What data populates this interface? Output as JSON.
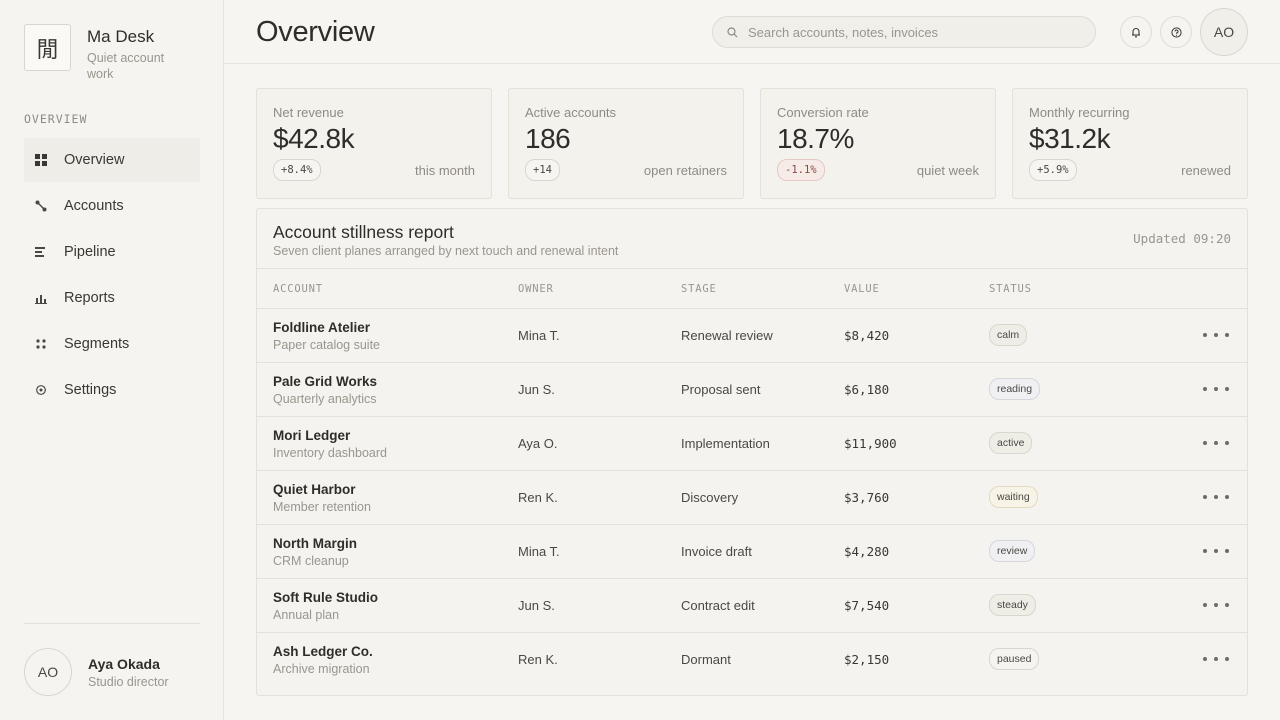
{
  "brand": {
    "name": "Ma Desk",
    "tagline": "Quiet account work",
    "logo_glyph": "閒"
  },
  "sidebar": {
    "section_label": "OVERVIEW",
    "items": [
      {
        "label": "Overview",
        "icon": "grid-icon",
        "active": true
      },
      {
        "label": "Accounts",
        "icon": "link-icon",
        "active": false
      },
      {
        "label": "Pipeline",
        "icon": "list-icon",
        "active": false
      },
      {
        "label": "Reports",
        "icon": "bar-chart-icon",
        "active": false
      },
      {
        "label": "Segments",
        "icon": "dots-grid-icon",
        "active": false
      },
      {
        "label": "Settings",
        "icon": "gear-icon",
        "active": false
      }
    ],
    "user": {
      "initials": "AO",
      "name": "Aya Okada",
      "role": "Studio director"
    }
  },
  "header": {
    "title": "Overview",
    "search_placeholder": "Search accounts, notes, invoices",
    "avatar_initials": "AO"
  },
  "metrics": [
    {
      "label": "Net revenue",
      "value": "$42.8k",
      "delta": "+8.4%",
      "delta_negative": false,
      "note": "this month"
    },
    {
      "label": "Active accounts",
      "value": "186",
      "delta": "+14",
      "delta_negative": false,
      "note": "open retainers"
    },
    {
      "label": "Conversion rate",
      "value": "18.7%",
      "delta": "-1.1%",
      "delta_negative": true,
      "note": "quiet week"
    },
    {
      "label": "Monthly recurring",
      "value": "$31.2k",
      "delta": "+5.9%",
      "delta_negative": false,
      "note": "renewed"
    }
  ],
  "report": {
    "title": "Account stillness report",
    "subtitle": "Seven client planes arranged by next touch and renewal intent",
    "updated": "Updated 09:20",
    "columns": [
      "ACCOUNT",
      "OWNER",
      "STAGE",
      "VALUE",
      "STATUS"
    ],
    "rows": [
      {
        "name": "Foldline Atelier",
        "sub": "Paper catalog suite",
        "owner": "Mina T.",
        "stage": "Renewal review",
        "value": "$8,420",
        "status": "calm"
      },
      {
        "name": "Pale Grid Works",
        "sub": "Quarterly analytics",
        "owner": "Jun S.",
        "stage": "Proposal sent",
        "value": "$6,180",
        "status": "reading"
      },
      {
        "name": "Mori Ledger",
        "sub": "Inventory dashboard",
        "owner": "Aya O.",
        "stage": "Implementation",
        "value": "$11,900",
        "status": "active"
      },
      {
        "name": "Quiet Harbor",
        "sub": "Member retention",
        "owner": "Ren K.",
        "stage": "Discovery",
        "value": "$3,760",
        "status": "waiting"
      },
      {
        "name": "North Margin",
        "sub": "CRM cleanup",
        "owner": "Mina T.",
        "stage": "Invoice draft",
        "value": "$4,280",
        "status": "review"
      },
      {
        "name": "Soft Rule Studio",
        "sub": "Annual plan",
        "owner": "Jun S.",
        "stage": "Contract edit",
        "value": "$7,540",
        "status": "steady"
      },
      {
        "name": "Ash Ledger Co.",
        "sub": "Archive migration",
        "owner": "Ren K.",
        "stage": "Dormant",
        "value": "$2,150",
        "status": "paused"
      }
    ]
  }
}
